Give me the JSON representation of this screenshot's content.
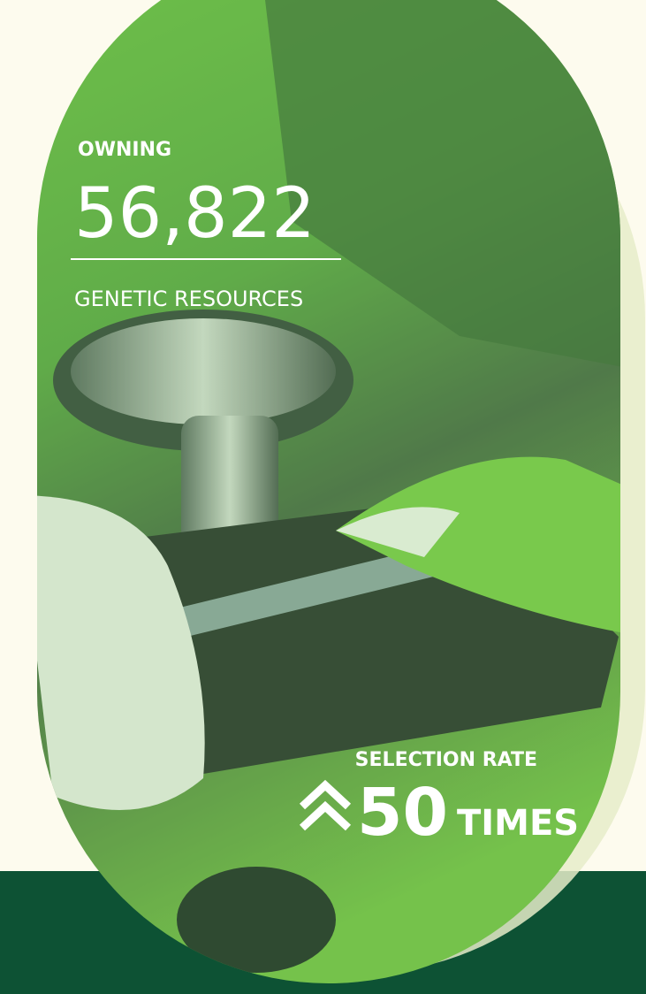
{
  "stat_top": {
    "label": "OWNING",
    "value": "56,822",
    "caption": "GENETIC RESOURCES"
  },
  "stat_bottom": {
    "label": "SELECTION RATE",
    "value": "50",
    "unit": "TIMES"
  }
}
